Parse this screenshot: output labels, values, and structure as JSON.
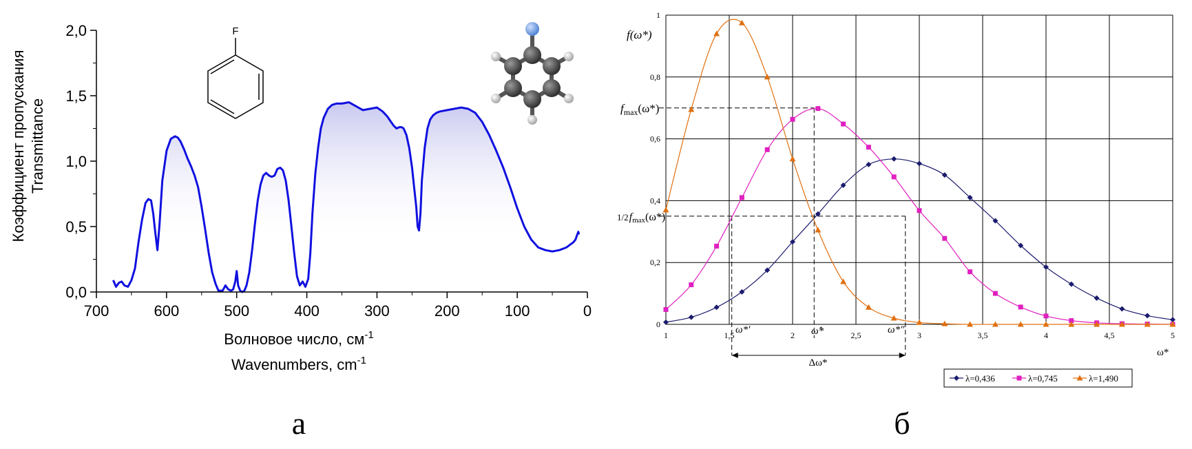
{
  "panel_a": {
    "caption": "а",
    "ylabel_ru": "Коэффициент пропускания",
    "ylabel_en": "Transmittance",
    "xlabel_ru": "Волновое число, см",
    "xlabel_ru_sup": "-1",
    "xlabel_en": "Wavenumbers, cm",
    "xlabel_en_sup": "-1",
    "molecule_atom_label": "F",
    "colors": {
      "line": "#1010e0",
      "fill": "#c8c8f0",
      "atom_f": "#6a9be0",
      "atom_c": "#404040",
      "atom_h": "#c8c8c8"
    }
  },
  "panel_b": {
    "caption": "б",
    "ylabel": "f(ω*)",
    "xlabel": "ω*",
    "fmax_label": "f",
    "fmax_sub": "max",
    "fmax_arg": "(ω*)",
    "half_label": "1/2",
    "half_fmax": "f",
    "half_sub": "max",
    "half_arg": "(ω*)",
    "omega1_label": "ω*′",
    "omegahat_label": "ω̂*",
    "omega2_label": "ω*″",
    "delta_label": "Δω*",
    "colors": {
      "navy": "#1c1c6e",
      "magenta": "#e020c0",
      "orange": "#e07010",
      "grid": "#000000"
    }
  },
  "chart_data": [
    {
      "type": "area",
      "xlabel": "Волновое число, см-1 / Wavenumbers, cm-1",
      "ylabel": "Коэффициент пропускания / Transmittance",
      "xlim": [
        700,
        0
      ],
      "ylim": [
        0,
        2.0
      ],
      "x_ticks": [
        "700",
        "600",
        "500",
        "400",
        "300",
        "200",
        "100",
        "0"
      ],
      "y_ticks": [
        "0,0",
        "0,5",
        "1,0",
        "1,5",
        "2,0"
      ],
      "grid": false,
      "series": [
        {
          "x": [
            676,
            672,
            668,
            664,
            660,
            655,
            650,
            645,
            640,
            635,
            630,
            626,
            622,
            619,
            616,
            613,
            610,
            606,
            600,
            594,
            588,
            584,
            580,
            575,
            570,
            565,
            560,
            555,
            550,
            545,
            540,
            535,
            530,
            526,
            523,
            520,
            516,
            512,
            508,
            505,
            502,
            500,
            498,
            495,
            492,
            489,
            486,
            482,
            478,
            474,
            470,
            466,
            462,
            458,
            454,
            450,
            446,
            442,
            438,
            434,
            430,
            426,
            422,
            418,
            414,
            410,
            406,
            402,
            398,
            395,
            392,
            388,
            384,
            380,
            376,
            370,
            364,
            358,
            350,
            340,
            330,
            320,
            310,
            300,
            292,
            285,
            280,
            276,
            272,
            268,
            265,
            262,
            258,
            254,
            250,
            247,
            244,
            242,
            240,
            238,
            236,
            232,
            228,
            224,
            220,
            215,
            210,
            200,
            190,
            180,
            170,
            160,
            150,
            140,
            130,
            120,
            110,
            100,
            90,
            80,
            70,
            60,
            50,
            40,
            30,
            25,
            20,
            17,
            15,
            13,
            12
          ],
          "y": [
            0.09,
            0.04,
            0.07,
            0.08,
            0.05,
            0.04,
            0.09,
            0.18,
            0.38,
            0.55,
            0.68,
            0.71,
            0.7,
            0.6,
            0.45,
            0.32,
            0.52,
            0.85,
            1.08,
            1.17,
            1.19,
            1.18,
            1.15,
            1.09,
            1.02,
            0.96,
            0.89,
            0.8,
            0.65,
            0.48,
            0.3,
            0.15,
            0.06,
            0.01,
            0.01,
            0.01,
            0.05,
            0.02,
            0.01,
            0.02,
            0.08,
            0.16,
            0.05,
            0.01,
            0.0,
            0.01,
            0.05,
            0.15,
            0.32,
            0.52,
            0.7,
            0.82,
            0.89,
            0.91,
            0.89,
            0.88,
            0.89,
            0.94,
            0.95,
            0.93,
            0.85,
            0.7,
            0.5,
            0.3,
            0.12,
            0.05,
            0.08,
            0.04,
            0.1,
            0.3,
            0.6,
            0.9,
            1.1,
            1.25,
            1.33,
            1.4,
            1.43,
            1.44,
            1.44,
            1.45,
            1.42,
            1.39,
            1.4,
            1.41,
            1.38,
            1.34,
            1.3,
            1.27,
            1.25,
            1.26,
            1.26,
            1.25,
            1.2,
            1.1,
            0.95,
            0.8,
            0.65,
            0.5,
            0.47,
            0.6,
            0.85,
            1.1,
            1.25,
            1.32,
            1.35,
            1.37,
            1.38,
            1.39,
            1.4,
            1.41,
            1.4,
            1.37,
            1.3,
            1.2,
            1.08,
            0.95,
            0.8,
            0.64,
            0.5,
            0.4,
            0.34,
            0.32,
            0.31,
            0.32,
            0.34,
            0.36,
            0.38,
            0.4,
            0.43,
            0.46,
            0.44
          ]
        }
      ]
    },
    {
      "type": "line",
      "xlabel": "ω*",
      "ylabel": "f(ω*)",
      "xlim": [
        1,
        5
      ],
      "ylim": [
        0,
        1
      ],
      "x_ticks": [
        "1",
        "1,5",
        "2",
        "2,5",
        "3",
        "3,5",
        "4",
        "4,5",
        "5"
      ],
      "y_ticks": [
        "0",
        "0,2",
        "0,4",
        "0,6",
        "0,8",
        "1"
      ],
      "grid": true,
      "legend": "bottom-right",
      "series": [
        {
          "name": "λ=0,436",
          "x": [
            1.0,
            1.2,
            1.4,
            1.6,
            1.8,
            2.0,
            2.2,
            2.4,
            2.6,
            2.8,
            3.0,
            3.2,
            3.4,
            3.6,
            3.8,
            4.0,
            4.2,
            4.4,
            4.6,
            4.8,
            5.0
          ],
          "y": [
            0.007,
            0.023,
            0.055,
            0.105,
            0.175,
            0.267,
            0.357,
            0.45,
            0.517,
            0.535,
            0.52,
            0.483,
            0.41,
            0.335,
            0.255,
            0.185,
            0.13,
            0.085,
            0.05,
            0.028,
            0.015
          ]
        },
        {
          "name": "λ=0,745",
          "x": [
            1.0,
            1.2,
            1.4,
            1.6,
            1.8,
            2.0,
            2.2,
            2.4,
            2.6,
            2.8,
            3.0,
            3.2,
            3.4,
            3.6,
            3.8,
            4.0,
            4.2,
            4.4,
            4.6,
            4.8,
            5.0
          ],
          "y": [
            0.048,
            0.128,
            0.253,
            0.41,
            0.565,
            0.663,
            0.698,
            0.648,
            0.573,
            0.477,
            0.368,
            0.278,
            0.17,
            0.1,
            0.056,
            0.027,
            0.012,
            0.005,
            0.002,
            0.001,
            0.0
          ]
        },
        {
          "name": "λ=1,490",
          "x": [
            1.0,
            1.2,
            1.4,
            1.6,
            1.8,
            2.0,
            2.2,
            2.4,
            2.6,
            2.8,
            3.0,
            3.2,
            3.4,
            3.6,
            3.8,
            4.0,
            4.2,
            4.4,
            4.6,
            4.8,
            5.0
          ],
          "y": [
            0.37,
            0.695,
            0.94,
            0.975,
            0.8,
            0.535,
            0.305,
            0.138,
            0.055,
            0.02,
            0.006,
            0.002,
            0.0,
            0.0,
            0.0,
            0.0,
            0.0,
            0.0,
            0.0,
            0.0,
            0.0
          ]
        }
      ]
    }
  ]
}
